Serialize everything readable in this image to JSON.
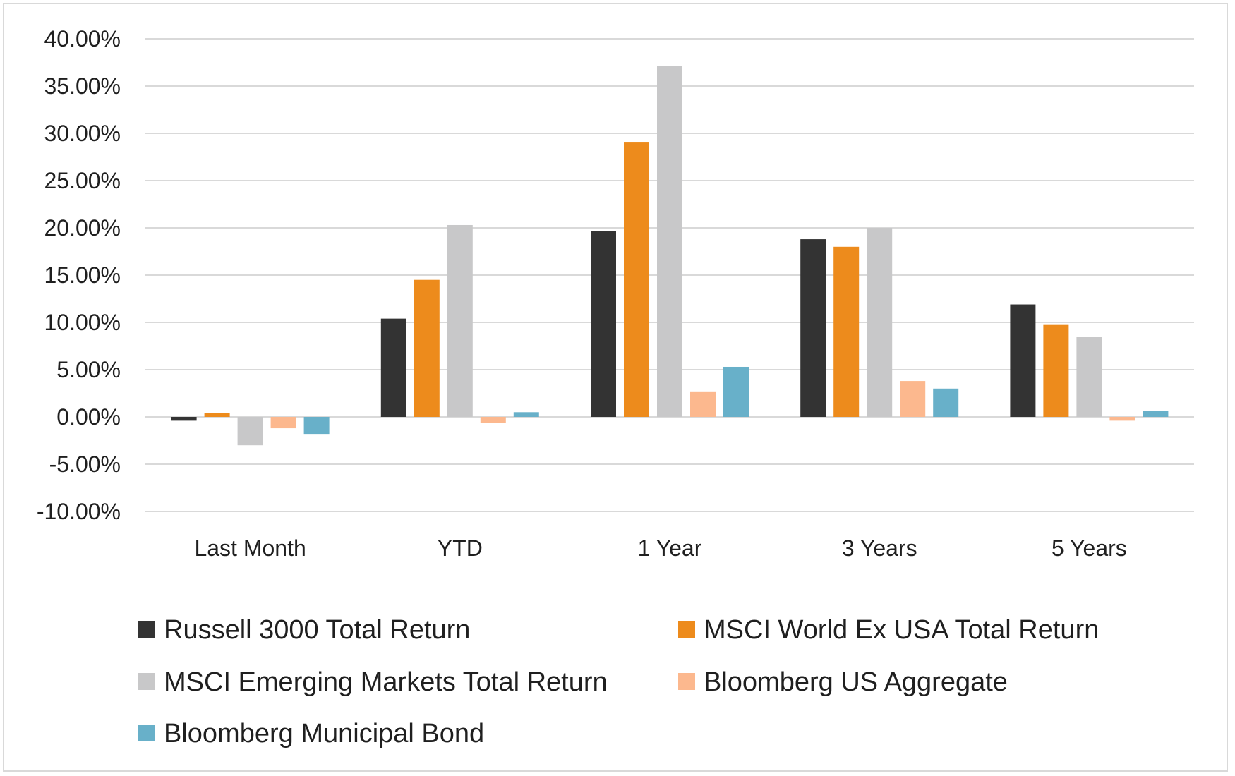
{
  "chart_data": {
    "type": "bar",
    "categories": [
      "Last Month",
      "YTD",
      "1 Year",
      "3 Years",
      "5 Years"
    ],
    "series": [
      {
        "name": "Russell 3000 Total Return",
        "color": "#333333",
        "values": [
          -0.4,
          10.4,
          19.7,
          18.8,
          11.9
        ]
      },
      {
        "name": "MSCI World Ex USA Total Return",
        "color": "#ed8b1c",
        "values": [
          0.4,
          14.5,
          29.1,
          18.0,
          9.8
        ]
      },
      {
        "name": "MSCI Emerging Markets Total Return",
        "color": "#c8c8c9",
        "values": [
          -3.0,
          20.3,
          37.1,
          20.0,
          8.5
        ]
      },
      {
        "name": "Bloomberg US Aggregate",
        "color": "#fcb88e",
        "values": [
          -1.2,
          -0.6,
          2.7,
          3.8,
          -0.4
        ]
      },
      {
        "name": "Bloomberg Municipal Bond",
        "color": "#68b0c9",
        "values": [
          -1.8,
          0.5,
          5.3,
          3.0,
          0.6
        ]
      }
    ],
    "yticks": [
      "40.00%",
      "35.00%",
      "30.00%",
      "25.00%",
      "20.00%",
      "15.00%",
      "10.00%",
      "5.00%",
      "0.00%",
      "-5.00%",
      "-10.00%"
    ],
    "ylim": [
      -10,
      40
    ],
    "ytick_step": 5,
    "grid": true,
    "legend_position": "bottom",
    "title": "",
    "xlabel": "",
    "ylabel": ""
  }
}
